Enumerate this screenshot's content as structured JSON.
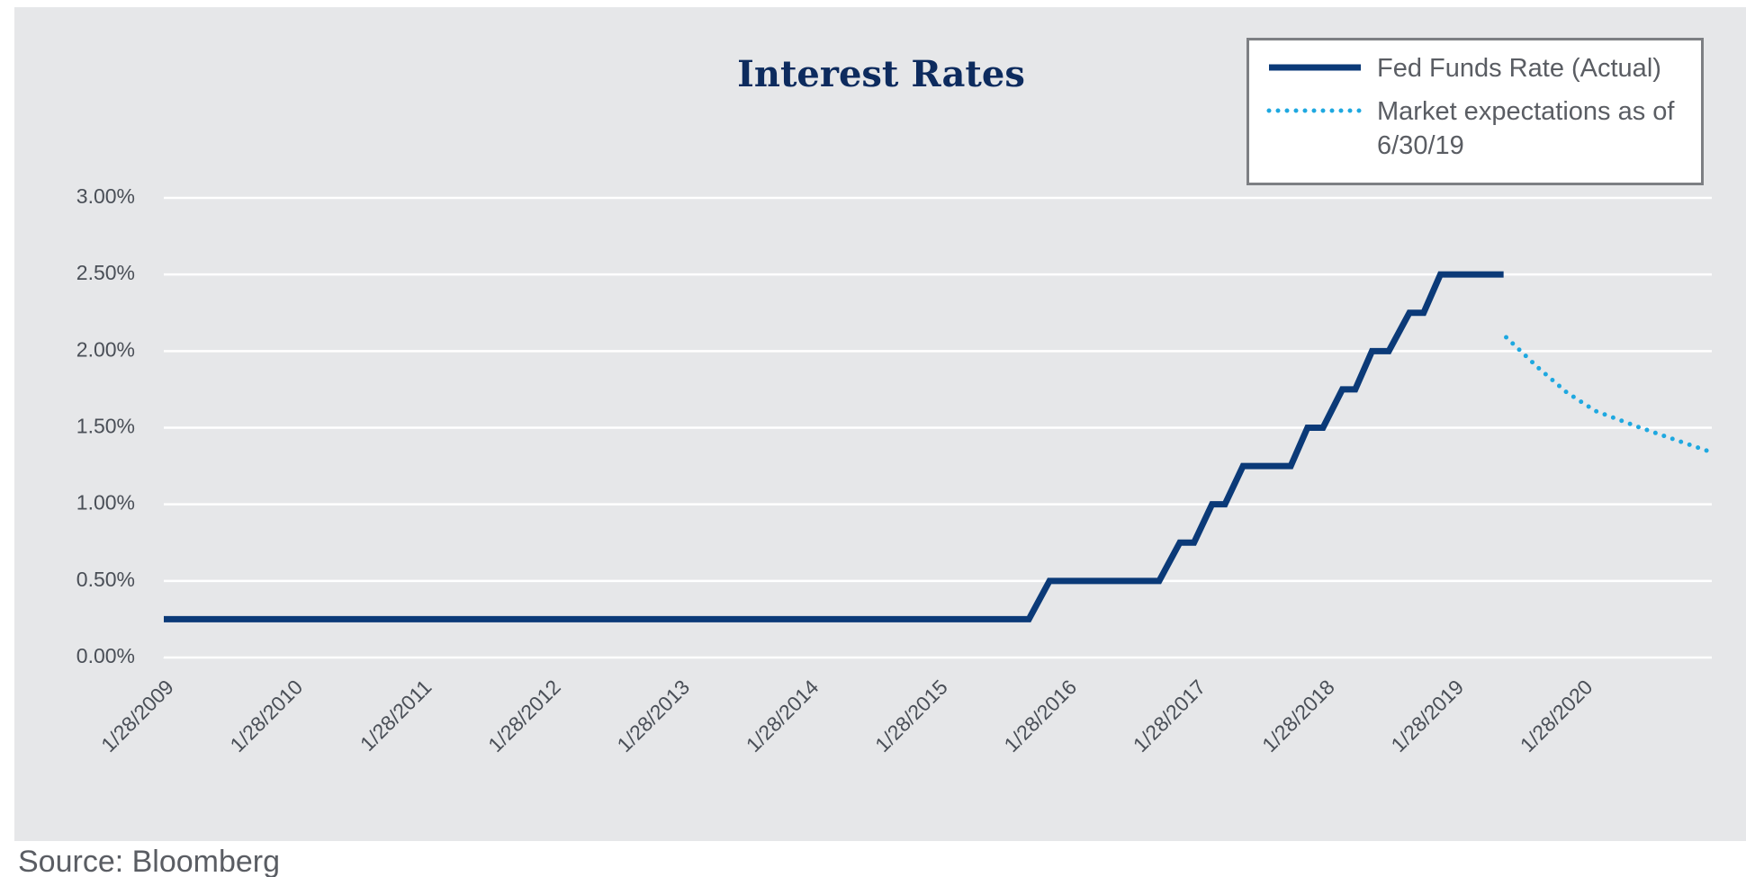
{
  "chart_data": {
    "type": "line",
    "title": "Interest Rates",
    "source": "Source: Bloomberg",
    "xlim": [
      2009.074,
      2021.074
    ],
    "xticks": [
      {
        "value": 2009.074,
        "label": "1/28/2009"
      },
      {
        "value": 2010.074,
        "label": "1/28/2010"
      },
      {
        "value": 2011.074,
        "label": "1/28/2011"
      },
      {
        "value": 2012.074,
        "label": "1/28/2012"
      },
      {
        "value": 2013.074,
        "label": "1/28/2013"
      },
      {
        "value": 2014.074,
        "label": "1/28/2014"
      },
      {
        "value": 2015.074,
        "label": "1/28/2015"
      },
      {
        "value": 2016.074,
        "label": "1/28/2016"
      },
      {
        "value": 2017.074,
        "label": "1/28/2017"
      },
      {
        "value": 2018.074,
        "label": "1/28/2018"
      },
      {
        "value": 2019.074,
        "label": "1/28/2019"
      },
      {
        "value": 2020.074,
        "label": "1/28/2020"
      }
    ],
    "ylim": [
      0,
      3
    ],
    "yticks": [
      {
        "value": 0,
        "label": "0.00%"
      },
      {
        "value": 0.5,
        "label": "0.50%"
      },
      {
        "value": 1,
        "label": "1.00%"
      },
      {
        "value": 1.5,
        "label": "1.50%"
      },
      {
        "value": 2,
        "label": "2.00%"
      },
      {
        "value": 2.5,
        "label": "2.50%"
      },
      {
        "value": 3,
        "label": "3.00%"
      }
    ],
    "grid": true,
    "legend": "upper right",
    "series": [
      {
        "name": "Fed Funds Rate (Actual)",
        "color": "#0b3a78",
        "style": "solid",
        "x": [
          2009.074,
          2015.78,
          2015.94,
          2016.79,
          2016.95,
          2017.06,
          2017.2,
          2017.3,
          2017.44,
          2017.81,
          2017.94,
          2018.06,
          2018.21,
          2018.31,
          2018.44,
          2018.57,
          2018.73,
          2018.84,
          2018.97,
          2019.46
        ],
        "values": [
          0.25,
          0.25,
          0.5,
          0.5,
          0.75,
          0.75,
          1.0,
          1.0,
          1.25,
          1.25,
          1.5,
          1.5,
          1.75,
          1.75,
          2.0,
          2.0,
          2.25,
          2.25,
          2.5,
          2.5
        ]
      },
      {
        "name": "Market expectations as of 6/30/19",
        "color": "#1ea8e0",
        "style": "dotted",
        "x": [
          2019.48,
          2019.73,
          2019.95,
          2020.17,
          2020.52,
          2021.07
        ],
        "values": [
          2.09,
          1.89,
          1.73,
          1.61,
          1.5,
          1.34
        ]
      }
    ]
  }
}
